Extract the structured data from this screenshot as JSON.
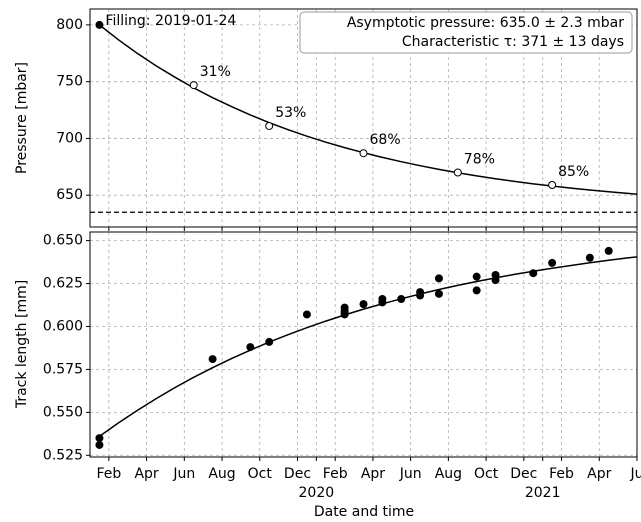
{
  "chart_data": [
    {
      "type": "line",
      "ylabel": "Pressure [mbar]",
      "xlim": [
        "2019-01",
        "2021-06"
      ],
      "ylim": [
        622,
        814
      ],
      "yticks": [
        650,
        700,
        750,
        800
      ],
      "grid": true,
      "color": "#000000",
      "x": [
        "2019-01",
        "2019-02",
        "2019-03",
        "2019-04",
        "2019-05",
        "2019-06",
        "2019-07",
        "2019-08",
        "2019-09",
        "2019-10",
        "2019-11",
        "2019-12",
        "2020-01",
        "2020-02",
        "2020-03",
        "2020-04",
        "2020-05",
        "2020-06",
        "2020-07",
        "2020-08",
        "2020-09",
        "2020-10",
        "2020-11",
        "2020-12",
        "2021-01",
        "2021-02",
        "2021-03",
        "2021-04",
        "2021-05",
        "2021-06"
      ],
      "values": [
        800.0,
        787.0,
        775.0,
        764.0,
        753.9,
        744.5,
        735.9,
        728.0,
        720.7,
        713.9,
        707.7,
        702.0,
        696.7,
        691.9,
        687.4,
        683.3,
        679.5,
        676.0,
        672.7,
        669.8,
        667.0,
        664.5,
        662.2,
        660.0,
        658.1,
        656.3,
        654.6,
        653.0,
        651.6,
        650.3
      ],
      "markers": {
        "x": [
          "2019-06",
          "2019-10",
          "2020-03",
          "2020-08",
          "2021-01"
        ],
        "values": [
          747,
          711,
          687,
          670,
          659
        ],
        "labels": [
          "31%",
          "53%",
          "68%",
          "78%",
          "85%"
        ]
      },
      "filling": {
        "x": "2019-01",
        "value": 800,
        "label": "Filling: 2019-01-24"
      },
      "asymptote": 635,
      "info_box": [
        "Asymptotic pressure: 635.0 ± 2.3 mbar",
        "Characteristic τ: 371 ± 13 days"
      ]
    },
    {
      "type": "scatter",
      "xlabel": "Date and time",
      "ylabel": "Track length [mm]",
      "xlim": [
        "2019-01",
        "2021-06"
      ],
      "ylim": [
        0.524,
        0.655
      ],
      "yticks": [
        0.525,
        0.55,
        0.575,
        0.6,
        0.625,
        0.65
      ],
      "ytick_labels": [
        "0.525",
        "0.550",
        "0.575",
        "0.600",
        "0.625",
        "0.650"
      ],
      "xticks": [
        {
          "value": "2019-02",
          "label": "Feb"
        },
        {
          "value": "2019-04",
          "label": "Apr"
        },
        {
          "value": "2019-06",
          "label": "Jun"
        },
        {
          "value": "2019-08",
          "label": "Aug"
        },
        {
          "value": "2019-10",
          "label": "Oct"
        },
        {
          "value": "2019-12",
          "label": "Dec"
        },
        {
          "value": "2020-01",
          "label": "2020"
        },
        {
          "value": "2020-02",
          "label": "Feb"
        },
        {
          "value": "2020-04",
          "label": "Apr"
        },
        {
          "value": "2020-06",
          "label": "Jun"
        },
        {
          "value": "2020-08",
          "label": "Aug"
        },
        {
          "value": "2020-10",
          "label": "Oct"
        },
        {
          "value": "2020-12",
          "label": "Dec"
        },
        {
          "value": "2021-01",
          "label": "2021"
        },
        {
          "value": "2021-02",
          "label": "Feb"
        },
        {
          "value": "2021-04",
          "label": "Apr"
        },
        {
          "value": "2021-06",
          "label": "Ju"
        }
      ],
      "grid": true,
      "color": "#000000",
      "x": [
        "2019-01",
        "2019-01",
        "2019-07",
        "2019-09",
        "2019-10",
        "2019-12",
        "2020-02",
        "2020-02",
        "2020-02",
        "2020-02",
        "2020-03",
        "2020-04",
        "2020-04",
        "2020-05",
        "2020-06",
        "2020-06",
        "2020-07",
        "2020-07",
        "2020-09",
        "2020-09",
        "2020-10",
        "2020-10",
        "2020-12",
        "2021-01",
        "2021-03",
        "2021-04"
      ],
      "values": [
        0.535,
        0.531,
        0.581,
        0.588,
        0.591,
        0.607,
        0.609,
        0.607,
        0.608,
        0.611,
        0.613,
        0.614,
        0.616,
        0.616,
        0.618,
        0.62,
        0.619,
        0.628,
        0.621,
        0.629,
        0.63,
        0.627,
        0.631,
        0.637,
        0.64,
        0.644
      ],
      "fit": {
        "x": [
          "2019-01",
          "2019-02",
          "2019-03",
          "2019-04",
          "2019-05",
          "2019-06",
          "2019-07",
          "2019-08",
          "2019-09",
          "2019-10",
          "2019-11",
          "2019-12",
          "2020-01",
          "2020-02",
          "2020-03",
          "2020-04",
          "2020-05",
          "2020-06",
          "2020-07",
          "2020-08",
          "2020-09",
          "2020-10",
          "2020-11",
          "2020-12",
          "2021-01",
          "2021-02",
          "2021-03",
          "2021-04",
          "2021-05",
          "2021-06"
        ],
        "values": [
          0.536,
          0.5438,
          0.5511,
          0.5579,
          0.5644,
          0.5704,
          0.576,
          0.5813,
          0.5862,
          0.5909,
          0.5952,
          0.5993,
          0.6031,
          0.6067,
          0.6101,
          0.6132,
          0.6161,
          0.6189,
          0.6215,
          0.6239,
          0.6262,
          0.6283,
          0.6303,
          0.6322,
          0.6339,
          0.6355,
          0.6371,
          0.6385,
          0.6399,
          0.6411
        ]
      }
    }
  ]
}
